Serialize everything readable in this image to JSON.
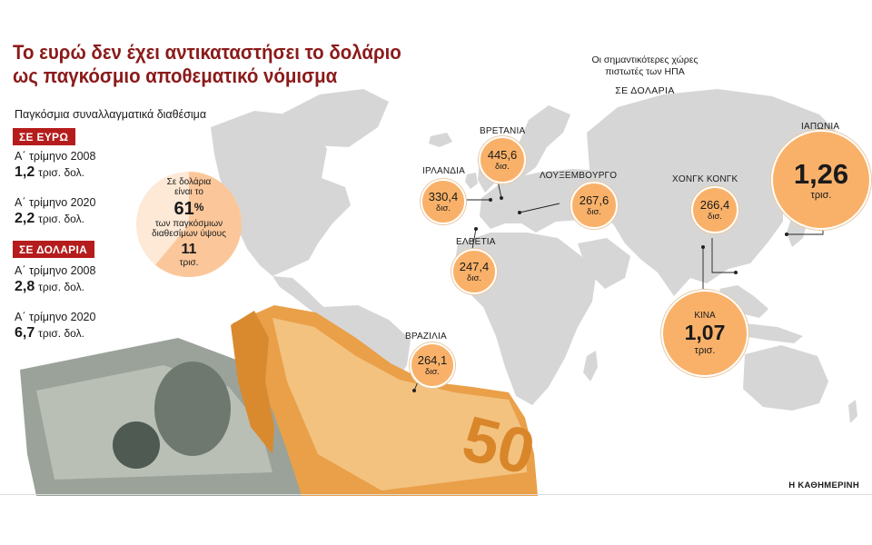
{
  "title_lines": [
    "Το ευρώ δεν έχει αντικαταστήσει το δολάριο",
    "ως παγκόσμιο αποθεματικό νόμισμα"
  ],
  "subtitle": "Παγκόσμια συναλλαγματικά διαθέσιμα",
  "colors": {
    "title": "#8b1a1a",
    "tag": "#b51c1c",
    "bubble": "#f9b169",
    "map": "#d6d6d6",
    "pie_share": "#fbc79a",
    "pie_rest": "#fde9d6",
    "euro_note": "#e9a049",
    "dollar_note": "#9aa29a"
  },
  "reserves": {
    "euro": {
      "tag": "ΣΕ ΕΥΡΩ",
      "rows": [
        {
          "period": "Α΄ τρίμηνο 2008",
          "value": "1,2",
          "unit": "τρισ. δολ."
        },
        {
          "period": "Α΄ τρίμηνο 2020",
          "value": "2,2",
          "unit": "τρισ. δολ."
        }
      ]
    },
    "dollar": {
      "tag": "ΣΕ ΔΟΛΑΡΙΑ",
      "rows": [
        {
          "period": "Α΄ τρίμηνο 2008",
          "value": "2,8",
          "unit": "τρισ. δολ."
        },
        {
          "period": "Α΄ τρίμηνο 2020",
          "value": "6,7",
          "unit": "τρισ. δολ."
        }
      ]
    }
  },
  "pie": {
    "share_percent": 61,
    "line1": "Σε δολάρια",
    "line2": "είναι το",
    "share_label": "61",
    "pct": "%",
    "line3": "των παγκόσμιων",
    "line4": "διαθεσίμων ύψους",
    "total": "11",
    "total_unit": "τρισ."
  },
  "creditors_header": {
    "line1": "Οι σημαντικότερες χώρες",
    "line2": "πιστωτές των ΗΠΑ",
    "unit_line": "ΣΕ ΔΟΛΑΡΙΑ"
  },
  "chart_data": {
    "type": "bubble-map",
    "title": "Οι σημαντικότερες χώρες πιστωτές των ΗΠΑ",
    "unit": "ΣΕ ΔΟΛΑΡΙΑ",
    "points": [
      {
        "country": "ΙΑΠΩΝΙΑ",
        "label": "1,26",
        "suffix": "τρισ.",
        "value_billion": 1260
      },
      {
        "country": "ΚΙΝΑ",
        "label": "1,07",
        "suffix": "τρισ.",
        "value_billion": 1070
      },
      {
        "country": "ΒΡΕΤΑΝΙΑ",
        "label": "445,6",
        "suffix": "δισ.",
        "value_billion": 445.6
      },
      {
        "country": "ΙΡΛΑΝΔΙΑ",
        "label": "330,4",
        "suffix": "δισ.",
        "value_billion": 330.4
      },
      {
        "country": "ΛΟΥΞΕΜΒΟΥΡΓΟ",
        "label": "267,6",
        "suffix": "δισ.",
        "value_billion": 267.6
      },
      {
        "country": "ΧΟΝΓΚ ΚΟΝΓΚ",
        "label": "266,4",
        "suffix": "δισ.",
        "value_billion": 266.4
      },
      {
        "country": "ΒΡΑΖΙΛΙΑ",
        "label": "264,1",
        "suffix": "δισ.",
        "value_billion": 264.1
      },
      {
        "country": "ΕΛΒΕΤΙΑ",
        "label": "247,4",
        "suffix": "δισ.",
        "value_billion": 247.4
      }
    ]
  },
  "credit": "Η ΚΑΘΗΜΕΡΙΝΗ"
}
